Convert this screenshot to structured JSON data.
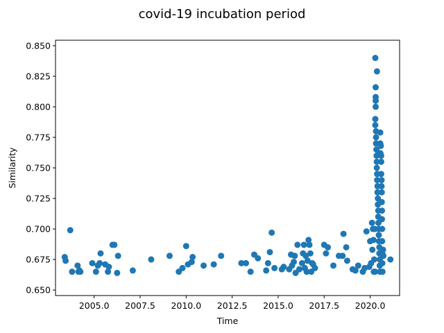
{
  "chart_data": {
    "type": "scatter",
    "title": "covid-19 incubation period",
    "xlabel": "Time",
    "ylabel": "Similarity",
    "xlim": [
      2002.9,
      2021.6
    ],
    "ylim": [
      0.6455,
      0.8545
    ],
    "xticks": [
      2005.0,
      2007.5,
      2010.0,
      2012.5,
      2015.0,
      2017.5,
      2020.0
    ],
    "xtick_labels": [
      "2005.0",
      "2007.5",
      "2010.0",
      "2012.5",
      "2015.0",
      "2017.5",
      "2020.0"
    ],
    "yticks": [
      0.65,
      0.675,
      0.7,
      0.725,
      0.75,
      0.775,
      0.8,
      0.825,
      0.85
    ],
    "ytick_labels": [
      "0.650",
      "0.675",
      "0.700",
      "0.725",
      "0.750",
      "0.775",
      "0.800",
      "0.825",
      "0.850"
    ],
    "grid": false,
    "marker_color": "#1f77b4",
    "points": [
      [
        2003.4,
        0.677
      ],
      [
        2003.45,
        0.674
      ],
      [
        2003.7,
        0.699
      ],
      [
        2003.8,
        0.665
      ],
      [
        2004.1,
        0.67
      ],
      [
        2004.15,
        0.665
      ],
      [
        2004.2,
        0.666
      ],
      [
        2004.25,
        0.665
      ],
      [
        2004.9,
        0.672
      ],
      [
        2005.1,
        0.665
      ],
      [
        2005.2,
        0.67
      ],
      [
        2005.3,
        0.672
      ],
      [
        2005.35,
        0.68
      ],
      [
        2005.6,
        0.671
      ],
      [
        2005.75,
        0.665
      ],
      [
        2005.8,
        0.669
      ],
      [
        2006.0,
        0.687
      ],
      [
        2006.1,
        0.687
      ],
      [
        2006.25,
        0.664
      ],
      [
        2006.3,
        0.678
      ],
      [
        2007.1,
        0.666
      ],
      [
        2008.1,
        0.675
      ],
      [
        2009.1,
        0.678
      ],
      [
        2009.6,
        0.665
      ],
      [
        2009.8,
        0.668
      ],
      [
        2010.0,
        0.686
      ],
      [
        2010.1,
        0.671
      ],
      [
        2010.3,
        0.673
      ],
      [
        2010.35,
        0.677
      ],
      [
        2010.95,
        0.67
      ],
      [
        2011.5,
        0.671
      ],
      [
        2011.9,
        0.678
      ],
      [
        2013.0,
        0.672
      ],
      [
        2013.25,
        0.672
      ],
      [
        2013.5,
        0.665
      ],
      [
        2013.7,
        0.679
      ],
      [
        2013.9,
        0.676
      ],
      [
        2014.35,
        0.666
      ],
      [
        2014.45,
        0.672
      ],
      [
        2014.55,
        0.681
      ],
      [
        2014.65,
        0.697
      ],
      [
        2014.8,
        0.668
      ],
      [
        2015.2,
        0.667
      ],
      [
        2015.3,
        0.669
      ],
      [
        2015.6,
        0.667
      ],
      [
        2015.7,
        0.679
      ],
      [
        2015.75,
        0.67
      ],
      [
        2015.85,
        0.673
      ],
      [
        2015.9,
        0.678
      ],
      [
        2015.95,
        0.664
      ],
      [
        2016.05,
        0.687
      ],
      [
        2016.15,
        0.667
      ],
      [
        2016.3,
        0.672
      ],
      [
        2016.35,
        0.68
      ],
      [
        2016.4,
        0.687
      ],
      [
        2016.45,
        0.668
      ],
      [
        2016.5,
        0.678
      ],
      [
        2016.55,
        0.665
      ],
      [
        2016.6,
        0.674
      ],
      [
        2016.65,
        0.691
      ],
      [
        2016.7,
        0.687
      ],
      [
        2016.75,
        0.68
      ],
      [
        2016.8,
        0.665
      ],
      [
        2016.85,
        0.672
      ],
      [
        2016.9,
        0.671
      ],
      [
        2017.0,
        0.668
      ],
      [
        2017.5,
        0.687
      ],
      [
        2017.6,
        0.68
      ],
      [
        2017.7,
        0.685
      ],
      [
        2018.0,
        0.67
      ],
      [
        2018.3,
        0.678
      ],
      [
        2018.5,
        0.678
      ],
      [
        2018.55,
        0.696
      ],
      [
        2018.7,
        0.685
      ],
      [
        2018.75,
        0.674
      ],
      [
        2019.05,
        0.667
      ],
      [
        2019.2,
        0.666
      ],
      [
        2019.35,
        0.67
      ],
      [
        2019.6,
        0.665
      ],
      [
        2019.7,
        0.668
      ],
      [
        2019.8,
        0.698
      ],
      [
        2019.95,
        0.669
      ],
      [
        2020.0,
        0.69
      ],
      [
        2020.05,
        0.672
      ],
      [
        2020.1,
        0.705
      ],
      [
        2020.12,
        0.683
      ],
      [
        2020.15,
        0.7
      ],
      [
        2020.18,
        0.691
      ],
      [
        2020.2,
        0.665
      ],
      [
        2020.22,
        0.675
      ],
      [
        2020.25,
        0.7
      ],
      [
        2020.27,
        0.665
      ],
      [
        2020.28,
        0.84
      ],
      [
        2020.28,
        0.79
      ],
      [
        2020.28,
        0.785
      ],
      [
        2020.3,
        0.816
      ],
      [
        2020.3,
        0.808
      ],
      [
        2020.3,
        0.805
      ],
      [
        2020.3,
        0.8
      ],
      [
        2020.32,
        0.78
      ],
      [
        2020.32,
        0.775
      ],
      [
        2020.32,
        0.77
      ],
      [
        2020.34,
        0.765
      ],
      [
        2020.35,
        0.76
      ],
      [
        2020.36,
        0.755
      ],
      [
        2020.36,
        0.75
      ],
      [
        2020.37,
        0.829
      ],
      [
        2020.38,
        0.745
      ],
      [
        2020.38,
        0.74
      ],
      [
        2020.4,
        0.735
      ],
      [
        2020.4,
        0.73
      ],
      [
        2020.42,
        0.725
      ],
      [
        2020.42,
        0.72
      ],
      [
        2020.44,
        0.715
      ],
      [
        2020.44,
        0.71
      ],
      [
        2020.45,
        0.705
      ],
      [
        2020.46,
        0.7
      ],
      [
        2020.47,
        0.695
      ],
      [
        2020.48,
        0.69
      ],
      [
        2020.5,
        0.685
      ],
      [
        2020.5,
        0.68
      ],
      [
        2020.52,
        0.675
      ],
      [
        2020.52,
        0.67
      ],
      [
        2020.54,
        0.665
      ],
      [
        2020.55,
        0.779
      ],
      [
        2020.55,
        0.77
      ],
      [
        2020.56,
        0.762
      ],
      [
        2020.58,
        0.768
      ],
      [
        2020.6,
        0.76
      ],
      [
        2020.6,
        0.755
      ],
      [
        2020.6,
        0.745
      ],
      [
        2020.62,
        0.74
      ],
      [
        2020.62,
        0.735
      ],
      [
        2020.63,
        0.73
      ],
      [
        2020.63,
        0.722
      ],
      [
        2020.64,
        0.715
      ],
      [
        2020.64,
        0.708
      ],
      [
        2020.65,
        0.7
      ],
      [
        2020.65,
        0.69
      ],
      [
        2020.66,
        0.68
      ],
      [
        2020.66,
        0.672
      ],
      [
        2020.67,
        0.665
      ],
      [
        2020.7,
        0.683
      ],
      [
        2020.72,
        0.678
      ],
      [
        2021.1,
        0.675
      ]
    ]
  }
}
